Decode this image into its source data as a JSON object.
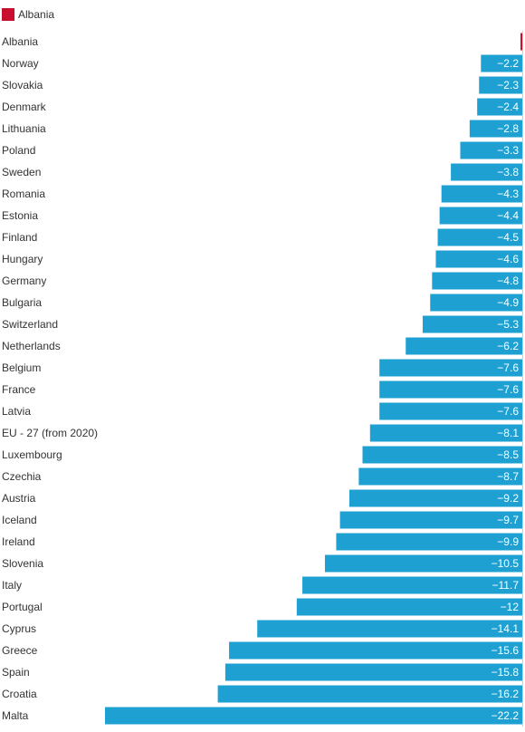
{
  "chart_data": {
    "type": "bar",
    "orientation": "horizontal",
    "legend": {
      "position": "top-left",
      "entries": [
        {
          "name": "Albania",
          "color": "#c8102e"
        }
      ]
    },
    "colors": {
      "highlight": "#c8102e",
      "bar": "#1ea1d2",
      "value_label": "#ffffff"
    },
    "grid": false,
    "xlim": [
      -22.2,
      0
    ],
    "categories": [
      "Albania",
      "Norway",
      "Slovakia",
      "Denmark",
      "Lithuania",
      "Poland",
      "Sweden",
      "Romania",
      "Estonia",
      "Finland",
      "Hungary",
      "Germany",
      "Bulgaria",
      "Switzerland",
      "Netherlands",
      "Belgium",
      "France",
      "Latvia",
      "EU - 27 (from 2020)",
      "Luxembourg",
      "Czechia",
      "Austria",
      "Iceland",
      "Ireland",
      "Slovenia",
      "Italy",
      "Portugal",
      "Cyprus",
      "Greece",
      "Spain",
      "Croatia",
      "Malta"
    ],
    "values": [
      null,
      -2.2,
      -2.3,
      -2.4,
      -2.8,
      -3.3,
      -3.8,
      -4.3,
      -4.4,
      -4.5,
      -4.6,
      -4.8,
      -4.9,
      -5.3,
      -6.2,
      -7.6,
      -7.6,
      -7.6,
      -8.1,
      -8.5,
      -8.7,
      -9.2,
      -9.7,
      -9.9,
      -10.5,
      -11.7,
      -12,
      -14.1,
      -15.6,
      -15.8,
      -16.2,
      -22.2
    ],
    "value_labels": [
      "",
      "−2.2",
      "−2.3",
      "−2.4",
      "−2.8",
      "−3.3",
      "−3.8",
      "−4.3",
      "−4.4",
      "−4.5",
      "−4.6",
      "−4.8",
      "−4.9",
      "−5.3",
      "−6.2",
      "−7.6",
      "−7.6",
      "−7.6",
      "−8.1",
      "−8.5",
      "−8.7",
      "−9.2",
      "−9.7",
      "−9.9",
      "−10.5",
      "−11.7",
      "−12",
      "−14.1",
      "−15.6",
      "−15.8",
      "−16.2",
      "−22.2"
    ],
    "highlight": "Albania"
  }
}
